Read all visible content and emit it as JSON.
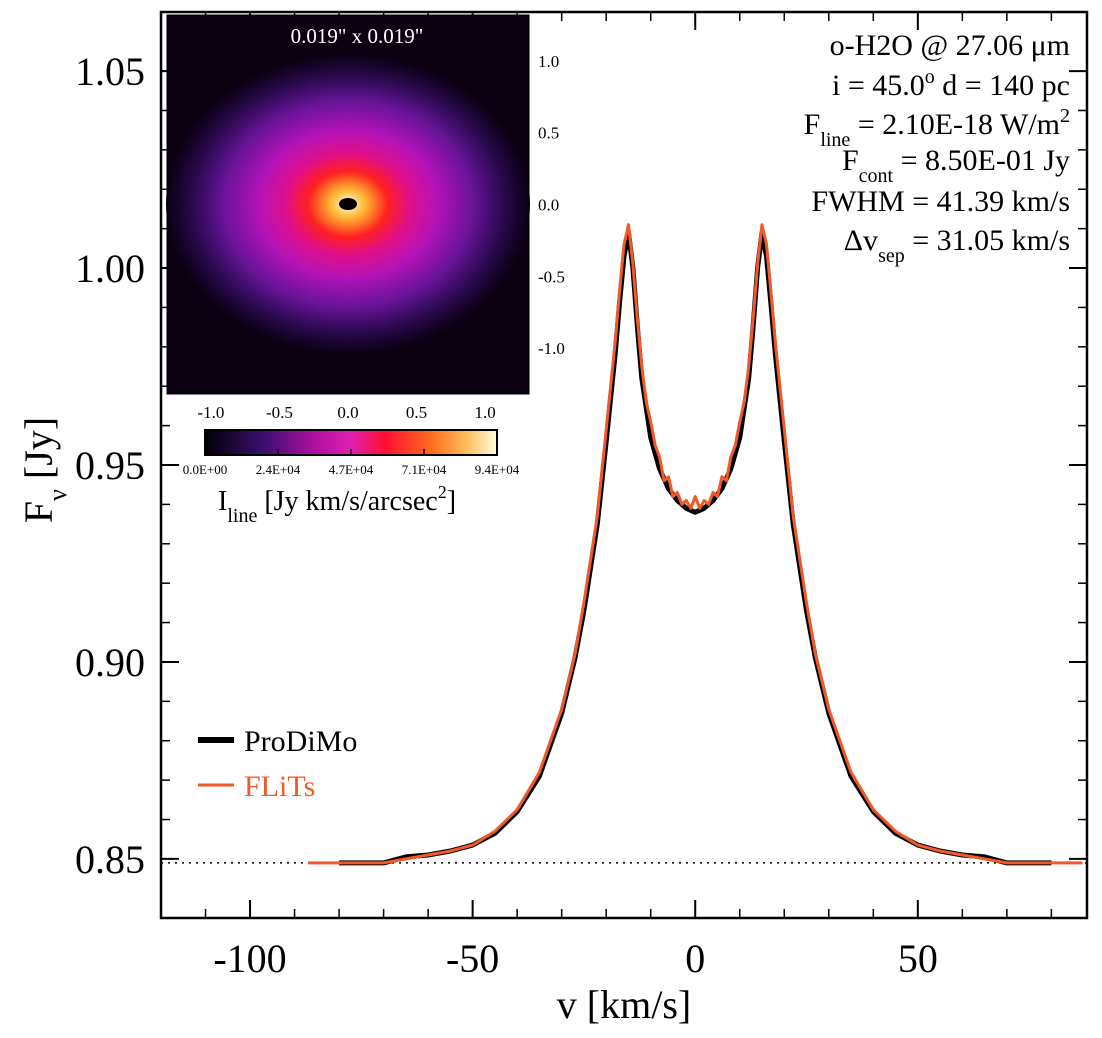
{
  "chart_data": {
    "type": "line",
    "xlabel": "v [km/s]",
    "ylabel": {
      "main": "F",
      "sub": "ν",
      "rest": " [Jy]"
    },
    "xlim": [
      -120,
      88
    ],
    "ylim": [
      0.835,
      1.065
    ],
    "xticks": [
      -100,
      -50,
      0,
      50
    ],
    "xtick_labels": [
      "-100",
      "-50",
      "0",
      "50"
    ],
    "yticks": [
      0.85,
      0.9,
      0.95,
      1.0,
      1.05
    ],
    "ytick_labels": [
      "0.85",
      "0.90",
      "0.95",
      "1.00",
      "1.05"
    ],
    "continuum_level": 0.849,
    "series": [
      {
        "name": "ProDiMo",
        "color": "#000000",
        "x": [
          -80,
          -70,
          -65,
          -60,
          -55,
          -50,
          -45,
          -40,
          -35,
          -30,
          -27,
          -25,
          -22,
          -20,
          -18,
          -17,
          -16,
          -15,
          -14,
          -13,
          -12,
          -10,
          -8,
          -6,
          -4,
          -2,
          -1,
          0,
          1,
          2,
          4,
          6,
          8,
          10,
          12,
          13,
          14,
          15,
          16,
          17,
          18,
          20,
          22,
          25,
          27,
          30,
          35,
          40,
          45,
          50,
          55,
          60,
          65,
          70,
          80
        ],
        "values": [
          0.849,
          0.849,
          0.8505,
          0.851,
          0.852,
          0.8535,
          0.8565,
          0.862,
          0.871,
          0.887,
          0.901,
          0.913,
          0.935,
          0.956,
          0.978,
          0.991,
          1.003,
          1.009,
          1.0,
          0.985,
          0.972,
          0.957,
          0.949,
          0.944,
          0.941,
          0.939,
          0.9385,
          0.938,
          0.9385,
          0.939,
          0.941,
          0.944,
          0.949,
          0.957,
          0.972,
          0.985,
          1.0,
          1.009,
          1.003,
          0.991,
          0.978,
          0.956,
          0.935,
          0.913,
          0.901,
          0.887,
          0.871,
          0.862,
          0.8565,
          0.8535,
          0.852,
          0.851,
          0.8505,
          0.849,
          0.849
        ]
      },
      {
        "name": "FLiTs",
        "color": "#f05a28",
        "x": [
          -87,
          -80,
          -70,
          -65,
          -60,
          -55,
          -50,
          -45,
          -40,
          -35,
          -30,
          -27,
          -25,
          -22,
          -20,
          -18,
          -17,
          -16,
          -15,
          -14,
          -13,
          -12,
          -11,
          -10,
          -9,
          -8,
          -7,
          -6,
          -5,
          -4,
          -3,
          -2,
          -1,
          0,
          1,
          2,
          3,
          4,
          5,
          6,
          7,
          8,
          9,
          10,
          11,
          12,
          13,
          14,
          15,
          16,
          17,
          18,
          20,
          22,
          25,
          27,
          30,
          35,
          40,
          45,
          50,
          55,
          60,
          65,
          70,
          80,
          87
        ],
        "values": [
          0.849,
          0.849,
          0.849,
          0.85,
          0.851,
          0.852,
          0.8535,
          0.857,
          0.8625,
          0.872,
          0.888,
          0.902,
          0.915,
          0.937,
          0.959,
          0.981,
          0.994,
          1.006,
          1.011,
          1.001,
          0.987,
          0.975,
          0.966,
          0.961,
          0.955,
          0.952,
          0.946,
          0.947,
          0.942,
          0.943,
          0.94,
          0.941,
          0.939,
          0.942,
          0.939,
          0.941,
          0.94,
          0.943,
          0.942,
          0.947,
          0.946,
          0.952,
          0.955,
          0.961,
          0.966,
          0.975,
          0.987,
          1.001,
          1.011,
          1.006,
          0.994,
          0.981,
          0.959,
          0.937,
          0.915,
          0.902,
          0.888,
          0.872,
          0.8625,
          0.857,
          0.8535,
          0.852,
          0.851,
          0.85,
          0.849,
          0.849,
          0.849
        ]
      }
    ],
    "legend_position": "lower-left",
    "annotations": [
      {
        "id": "line",
        "parts": [
          {
            "t": "o-H2O @ 27.06 μm"
          }
        ]
      },
      {
        "id": "geom",
        "parts": [
          {
            "t": "i = 45.0"
          },
          {
            "t": "o",
            "sup": true
          },
          {
            "t": "   d = 140 pc"
          }
        ]
      },
      {
        "id": "fline",
        "parts": [
          {
            "t": "F"
          },
          {
            "t": "line",
            "sub": true
          },
          {
            "t": " = 2.10E-18 W/m"
          },
          {
            "t": "2",
            "sup": true
          }
        ]
      },
      {
        "id": "fcont",
        "parts": [
          {
            "t": "F"
          },
          {
            "t": "cont",
            "sub": true
          },
          {
            "t": " = 8.50E-01 Jy"
          }
        ]
      },
      {
        "id": "fwhm",
        "parts": [
          {
            "t": "FWHM = 41.39 km/s"
          }
        ]
      },
      {
        "id": "dvsep",
        "parts": [
          {
            "t": "Δv"
          },
          {
            "t": "sep",
            "sub": true
          },
          {
            "t": " = 31.05 km/s"
          }
        ]
      }
    ],
    "inset": {
      "title": "0.019\" x 0.019\"",
      "xlim": [
        -1.32,
        1.32
      ],
      "ylim": [
        -1.32,
        1.32
      ],
      "xticks": [
        -1.0,
        -0.5,
        0.0,
        0.5,
        1.0
      ],
      "xtick_labels": [
        "-1.0",
        "-0.5",
        "0.0",
        "0.5",
        "1.0"
      ],
      "yticks": [
        1.0,
        0.5,
        0.0,
        -0.5,
        -1.0
      ],
      "ytick_labels": [
        "1.0",
        "0.5",
        "0.0",
        "-0.5",
        "-1.0"
      ],
      "colorbar": {
        "tick_labels": [
          "0.0E+00",
          "2.4E+04",
          "4.7E+04",
          "7.1E+04",
          "9.4E+04"
        ],
        "label": {
          "main": "I",
          "sub": "line",
          "rest": " [Jy km/s/arcsec",
          "sup": "2",
          "end": "]"
        }
      }
    }
  }
}
